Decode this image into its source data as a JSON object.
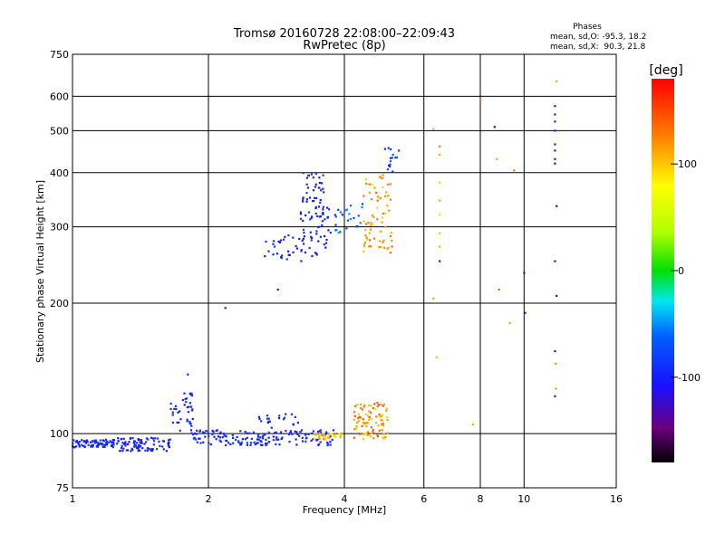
{
  "chart_data": {
    "type": "scatter",
    "title": "Tromsø 20160728 22:08:00–22:09:43",
    "subtitle": "RwPretec (8p)",
    "xlabel": "Frequency [MHz]",
    "ylabel": "Stationary phase Virtual Height [km]",
    "x_scale": "log2",
    "y_scale": "log",
    "xlim": [
      1,
      16
    ],
    "ylim": [
      75,
      750
    ],
    "x_ticks": [
      "1",
      "2",
      "4",
      "6",
      "8",
      "10",
      "16"
    ],
    "x_tick_values": [
      1,
      2,
      4,
      6,
      8,
      10,
      16
    ],
    "y_ticks": [
      "75",
      "100",
      "200",
      "300",
      "400",
      "500",
      "600",
      "750"
    ],
    "y_tick_values": [
      75,
      100,
      200,
      300,
      400,
      500,
      600,
      750
    ],
    "grid": true,
    "phase_info": {
      "title": "Phases",
      "line1": "mean, sd,O: -95.3, 18.2",
      "line2": "mean, sd,X:  90.3, 21.8"
    },
    "colorbar": {
      "label": "[deg]",
      "range": [
        -180,
        180
      ],
      "ticks": [
        "100",
        "0",
        "-100"
      ],
      "tick_values": [
        100,
        0,
        -100
      ]
    },
    "point_groups": [
      {
        "f": [
          1.0,
          1.25
        ],
        "h": [
          93,
          97
        ],
        "phase": [
          -105,
          -80
        ],
        "count": 80
      },
      {
        "f": [
          1.25,
          1.65
        ],
        "h": [
          91,
          98
        ],
        "phase": [
          -110,
          -85
        ],
        "count": 90
      },
      {
        "f": [
          1.65,
          1.85
        ],
        "h": [
          100,
          125
        ],
        "phase": [
          -105,
          -85
        ],
        "count": 40
      },
      {
        "f": [
          1.85,
          3.8
        ],
        "h": [
          94,
          102
        ],
        "phase": [
          -110,
          -80
        ],
        "count": 160
      },
      {
        "f": [
          2.5,
          3.2
        ],
        "h": [
          103,
          111
        ],
        "phase": [
          -110,
          -80
        ],
        "count": 20
      },
      {
        "f": [
          3.4,
          4.0
        ],
        "h": [
          97,
          100
        ],
        "phase": [
          80,
          120
        ],
        "count": 30
      },
      {
        "f": [
          4.2,
          5.0
        ],
        "h": [
          97,
          118
        ],
        "phase": [
          90,
          150
        ],
        "count": 90
      },
      {
        "f": [
          2.6,
          3.3
        ],
        "h": [
          250,
          290
        ],
        "phase": [
          -110,
          -80
        ],
        "count": 30
      },
      {
        "f": [
          3.2,
          3.7
        ],
        "h": [
          255,
          400
        ],
        "phase": [
          -110,
          -80
        ],
        "count": 90
      },
      {
        "f": [
          3.7,
          4.4
        ],
        "h": [
          290,
          340
        ],
        "phase": [
          -100,
          -40
        ],
        "count": 25
      },
      {
        "f": [
          4.4,
          5.1
        ],
        "h": [
          260,
          400
        ],
        "phase": [
          90,
          140
        ],
        "count": 70
      },
      {
        "f": [
          4.9,
          5.3
        ],
        "h": [
          400,
          460
        ],
        "phase": [
          -100,
          -60
        ],
        "count": 15
      }
    ],
    "points": [
      [
        1.8,
        137,
        -100
      ],
      [
        2.18,
        195,
        -110
      ],
      [
        2.85,
        215,
        -100
      ],
      [
        6.3,
        505,
        110
      ],
      [
        6.3,
        205,
        110
      ],
      [
        6.4,
        150,
        30
      ],
      [
        6.5,
        460,
        130
      ],
      [
        6.5,
        440,
        110
      ],
      [
        6.5,
        380,
        100
      ],
      [
        6.5,
        345,
        110
      ],
      [
        6.5,
        320,
        40
      ],
      [
        6.5,
        290,
        100
      ],
      [
        6.5,
        270,
        110
      ],
      [
        6.5,
        250,
        -110
      ],
      [
        7.7,
        105,
        110
      ],
      [
        8.0,
        590,
        130
      ],
      [
        8.6,
        510,
        -110
      ],
      [
        8.7,
        430,
        110
      ],
      [
        8.8,
        215,
        140
      ],
      [
        9.3,
        180,
        110
      ],
      [
        9.5,
        405,
        130
      ],
      [
        10.0,
        235,
        -110
      ],
      [
        10.05,
        190,
        -110
      ],
      [
        11.8,
        650,
        110
      ],
      [
        11.7,
        570,
        -110
      ],
      [
        11.7,
        545,
        -105
      ],
      [
        11.7,
        525,
        -100
      ],
      [
        11.7,
        500,
        -100
      ],
      [
        11.7,
        465,
        -100
      ],
      [
        11.7,
        450,
        -110
      ],
      [
        11.7,
        430,
        -100
      ],
      [
        11.7,
        420,
        -120
      ],
      [
        11.8,
        335,
        -110
      ],
      [
        11.7,
        250,
        -110
      ],
      [
        11.8,
        208,
        -110
      ],
      [
        11.7,
        155,
        -110
      ],
      [
        11.75,
        145,
        120
      ],
      [
        11.75,
        127,
        120
      ],
      [
        11.7,
        122,
        -110
      ]
    ]
  }
}
